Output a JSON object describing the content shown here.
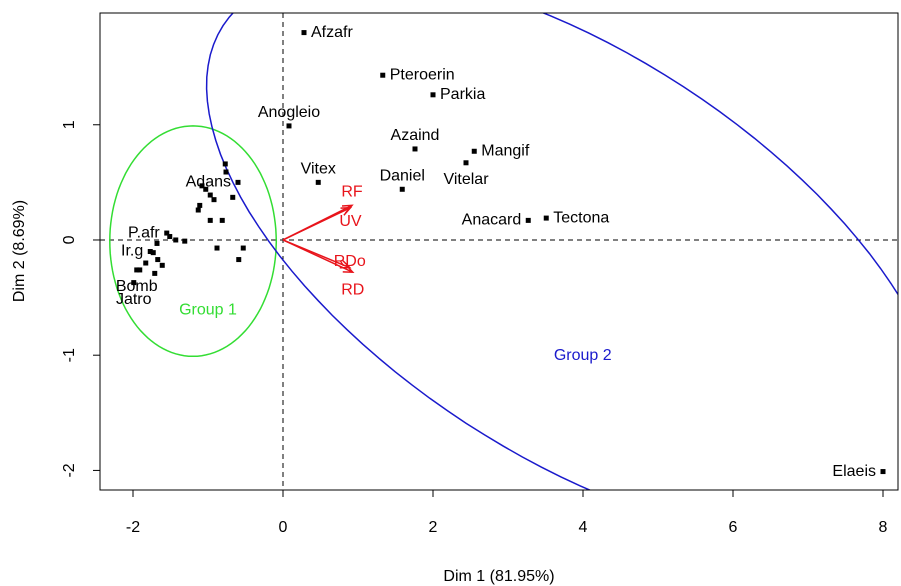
{
  "chart_data": {
    "type": "scatter",
    "xlabel": "Dim 1 (81.95%)",
    "ylabel": "Dim 2 (8.69%)",
    "xlim": [
      -2.44,
      8.2
    ],
    "ylim": [
      -2.17,
      1.97
    ],
    "xticks": [
      -2,
      0,
      2,
      4,
      6,
      8
    ],
    "yticks": [
      -2,
      -1,
      0,
      1
    ],
    "point_color": "#000000",
    "points": {
      "labels": [
        "Afzafr",
        "Pteroerin",
        "Parkia",
        "Anogleio",
        "Azaind",
        "Mangif",
        "Vitelar",
        "Vitex",
        "Daniel",
        "Adans",
        "Anacard",
        "Tectona",
        "Elaeis",
        "P.afr",
        "Ir.g",
        "Bomb",
        "Jatro",
        null,
        null,
        null,
        null,
        null,
        null,
        null,
        null,
        null,
        null,
        null,
        null,
        null,
        null,
        null,
        null,
        null,
        null,
        null,
        null,
        null,
        null,
        null,
        null
      ],
      "x": [
        0.28,
        1.33,
        2.0,
        0.08,
        1.76,
        2.55,
        2.44,
        0.47,
        1.59,
        -0.6,
        3.27,
        3.51,
        8.0,
        -1.55,
        -1.77,
        -1.95,
        -1.99,
        -0.77,
        -0.76,
        -1.08,
        -1.03,
        -0.97,
        -0.92,
        -0.67,
        -0.81,
        -0.97,
        -1.11,
        -1.13,
        -1.43,
        -1.31,
        -1.68,
        -1.73,
        -1.67,
        -1.61,
        -1.71,
        -1.83,
        -1.91,
        -0.88,
        -0.53,
        -0.59,
        -1.51
      ],
      "y": [
        1.8,
        1.43,
        1.26,
        0.99,
        0.79,
        0.77,
        0.67,
        0.5,
        0.44,
        0.5,
        0.17,
        0.19,
        -2.01,
        0.06,
        -0.1,
        -0.26,
        -0.37,
        0.66,
        0.59,
        0.47,
        0.44,
        0.39,
        0.35,
        0.37,
        0.17,
        0.17,
        0.3,
        0.26,
        0.0,
        -0.01,
        -0.03,
        -0.11,
        -0.17,
        -0.22,
        -0.29,
        -0.2,
        -0.26,
        -0.07,
        -0.07,
        -0.17,
        0.03
      ]
    },
    "arrows": {
      "color": "#e8141b",
      "labels": [
        "RF",
        "UV",
        "RDo",
        "RD"
      ],
      "x": [
        0.92,
        0.9,
        0.89,
        0.93
      ],
      "y": [
        0.3,
        0.28,
        -0.24,
        -0.28
      ]
    },
    "ellipses": [
      {
        "label": "Group 1",
        "color": "#33dd33",
        "center": [
          -1.2,
          -0.01
        ],
        "axis1": [
          1.11,
          0
        ],
        "axis2": [
          0,
          1.0
        ]
      },
      {
        "label": "Group 2",
        "color": "#1a1acc",
        "center": [
          3.89,
          -0.13
        ],
        "axis1": [
          4.69,
          -1.99
        ],
        "axis2": [
          -1.45,
          -1.46
        ]
      }
    ]
  }
}
